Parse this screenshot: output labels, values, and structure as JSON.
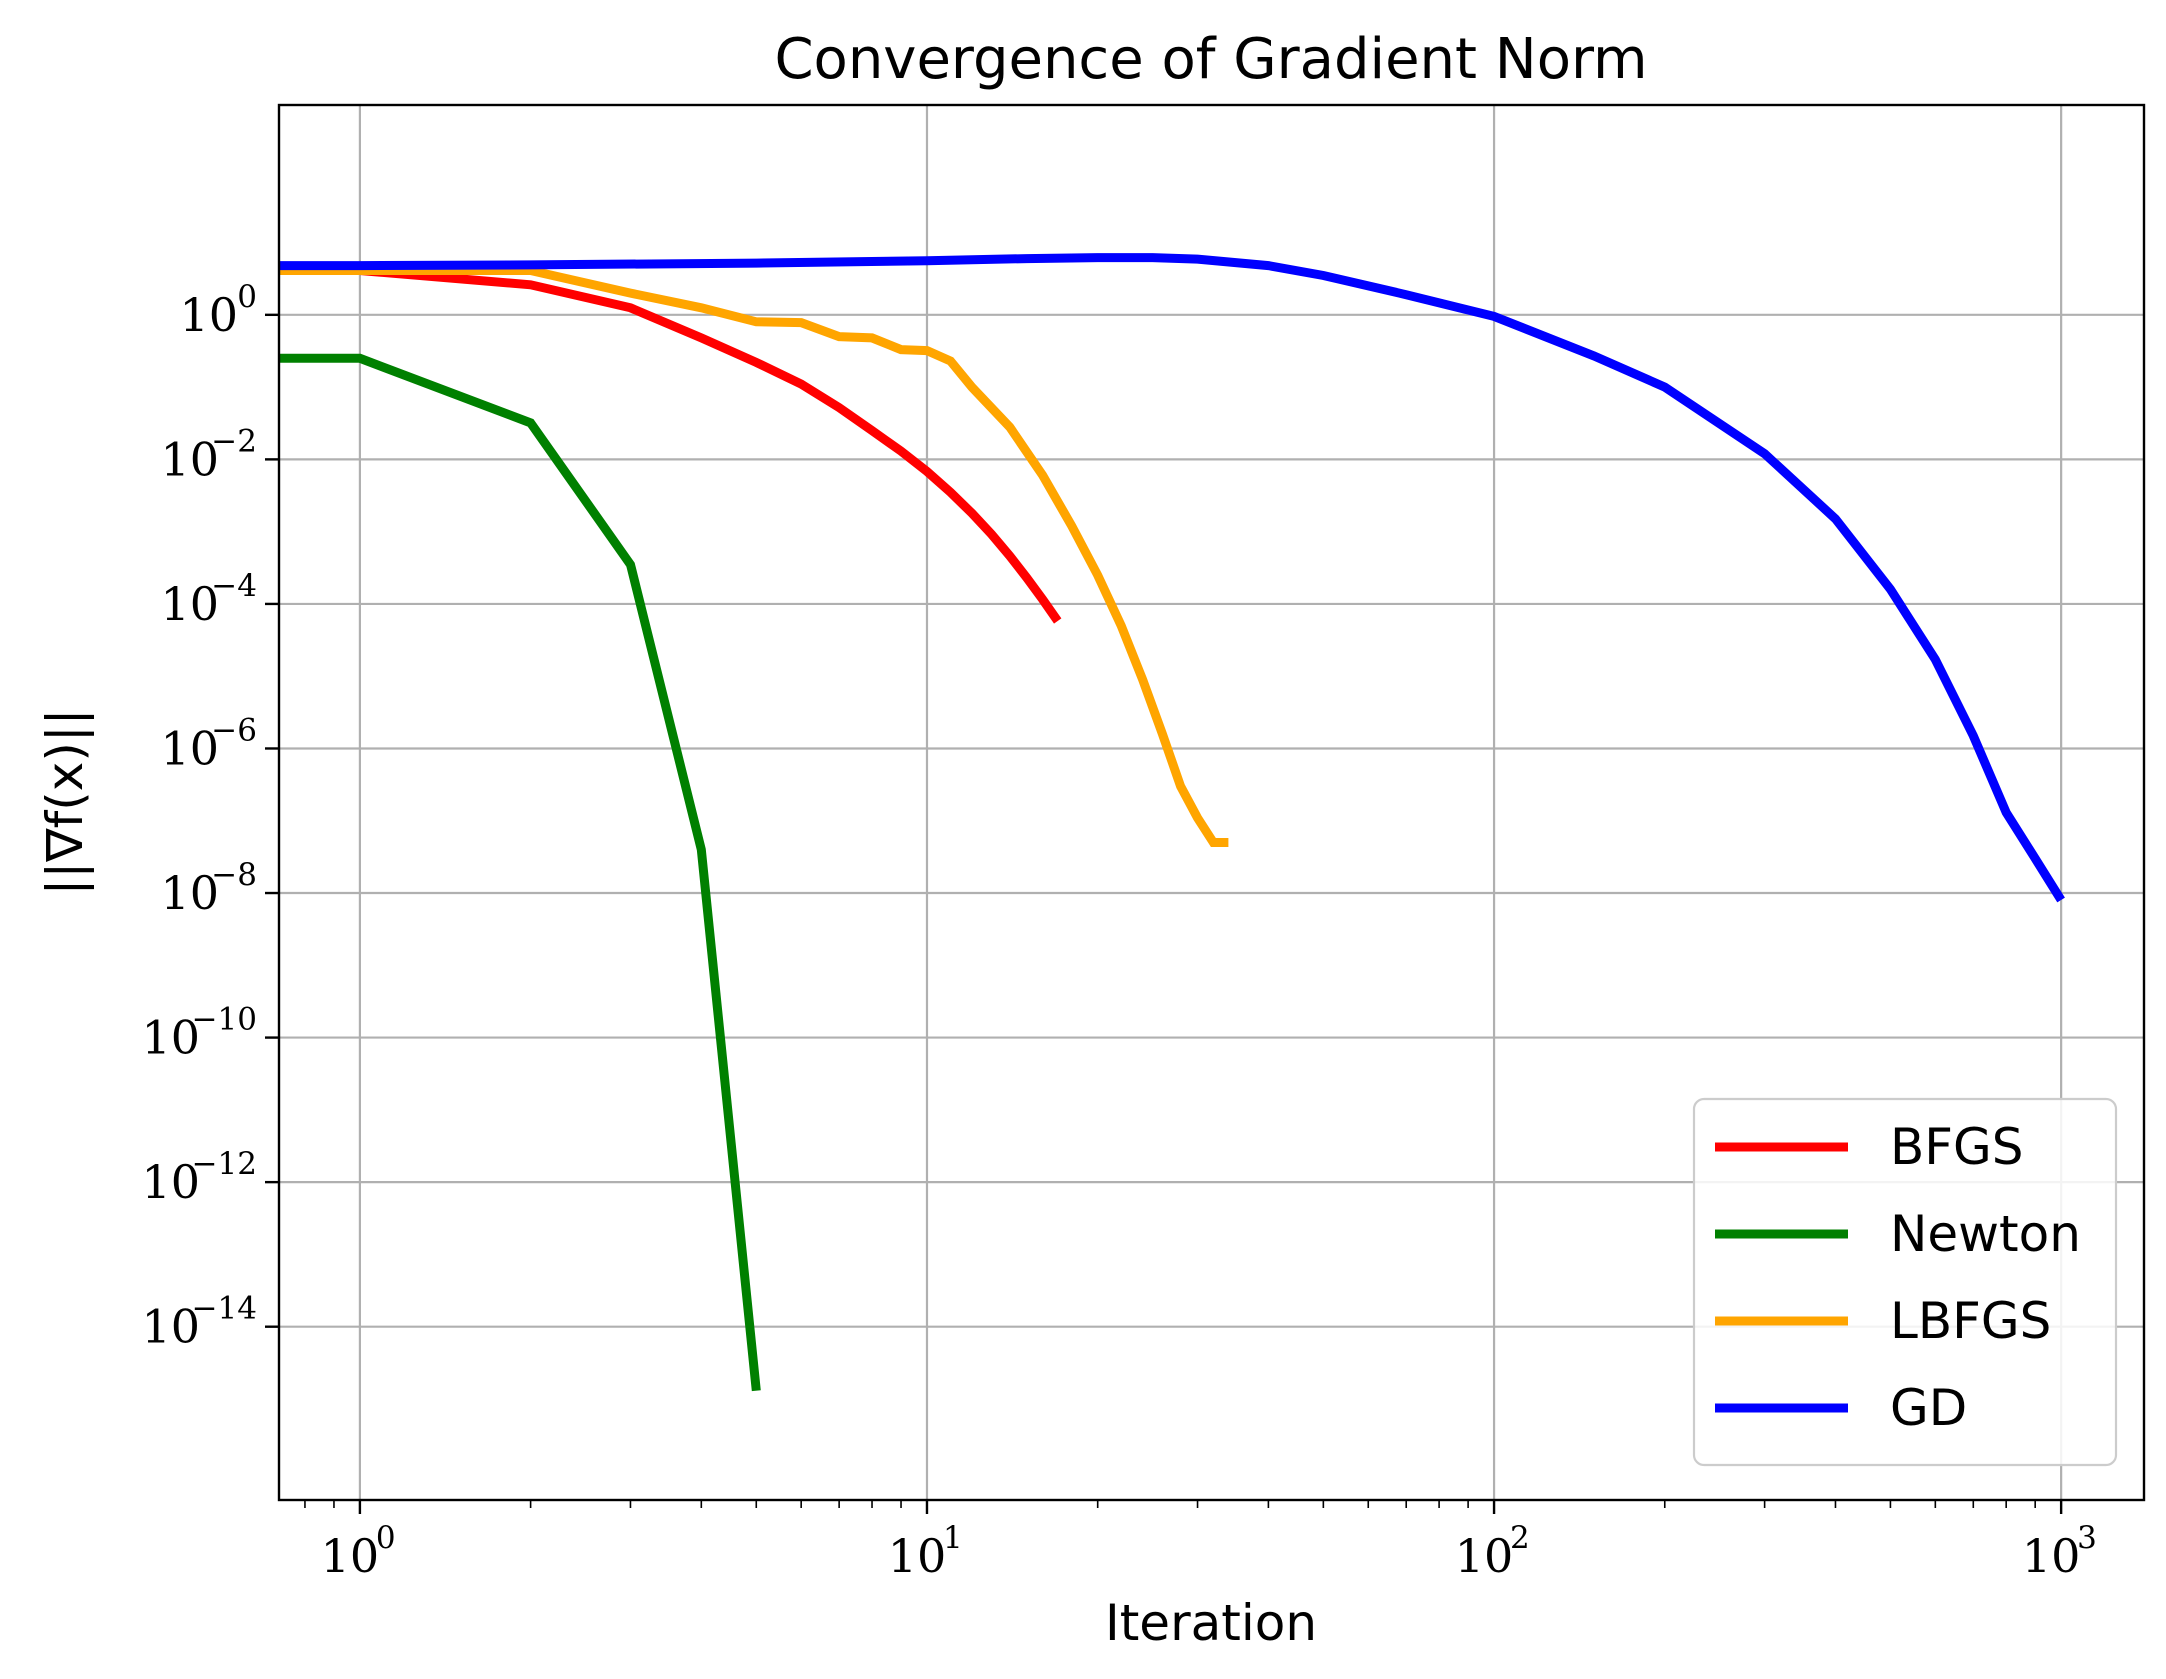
{
  "chart_data": {
    "type": "line",
    "title": "Convergence of Gradient Norm",
    "xlabel": "Iteration",
    "ylabel": "||∇f(x)||",
    "xscale": "log",
    "yscale": "log",
    "xlim": [
      0.72,
      1400
    ],
    "ylim": [
      4e-17,
      800
    ],
    "grid": true,
    "legend_position": "lower-right",
    "x_ticks": [
      {
        "value": 1,
        "base": "10",
        "exp": "0"
      },
      {
        "value": 10,
        "base": "10",
        "exp": "1"
      },
      {
        "value": 100,
        "base": "10",
        "exp": "2"
      },
      {
        "value": 1000,
        "base": "10",
        "exp": "3"
      }
    ],
    "y_ticks": [
      {
        "value": 1,
        "base": "10",
        "exp": "0"
      },
      {
        "value": 0.01,
        "base": "10",
        "exp": "−2"
      },
      {
        "value": 0.0001,
        "base": "10",
        "exp": "−4"
      },
      {
        "value": 1e-06,
        "base": "10",
        "exp": "−6"
      },
      {
        "value": 1e-08,
        "base": "10",
        "exp": "−8"
      },
      {
        "value": 1e-10,
        "base": "10",
        "exp": "−10"
      },
      {
        "value": 1e-12,
        "base": "10",
        "exp": "−12"
      },
      {
        "value": 1e-14,
        "base": "10",
        "exp": "−14"
      }
    ],
    "series": [
      {
        "name": "BFGS",
        "color": "#ff0000",
        "x": [
          0,
          1,
          2,
          3,
          4,
          5,
          6,
          7,
          8,
          9,
          10,
          11,
          12,
          13,
          14,
          15,
          16,
          17
        ],
        "y": [
          4.1,
          4.1,
          2.6,
          1.25,
          0.48,
          0.22,
          0.11,
          0.052,
          0.025,
          0.013,
          0.0068,
          0.0035,
          0.0018,
          0.00092,
          0.00046,
          0.00023,
          0.000115,
          5.8e-05
        ]
      },
      {
        "name": "Newton",
        "color": "#008000",
        "x": [
          0,
          1,
          2,
          3,
          4,
          5
        ],
        "y": [
          0.25,
          0.25,
          0.032,
          0.00035,
          4e-08,
          1.3e-15
        ]
      },
      {
        "name": "LBFGS",
        "color": "#ffa500",
        "x": [
          0,
          1,
          2,
          3,
          4,
          5,
          6,
          7,
          8,
          9,
          10,
          11,
          12,
          14,
          16,
          18,
          20,
          22,
          24,
          26,
          28,
          30,
          32,
          33,
          34
        ],
        "y": [
          4.1,
          4.1,
          4.1,
          2.0,
          1.25,
          0.8,
          0.78,
          0.5,
          0.48,
          0.33,
          0.32,
          0.23,
          0.1,
          0.028,
          0.006,
          0.0012,
          0.00025,
          5e-05,
          9e-06,
          1.6e-06,
          3e-07,
          1.1e-07,
          5e-08,
          5e-08,
          5e-08
        ]
      },
      {
        "name": "GD",
        "color": "#0000ff",
        "x": [
          0,
          1,
          2,
          5,
          10,
          15,
          20,
          25,
          30,
          40,
          50,
          70,
          100,
          150,
          200,
          300,
          400,
          500,
          600,
          700,
          800,
          900,
          1000
        ],
        "y": [
          4.8,
          4.8,
          4.9,
          5.2,
          5.6,
          6.0,
          6.2,
          6.2,
          5.9,
          4.8,
          3.5,
          1.9,
          0.95,
          0.27,
          0.1,
          0.012,
          0.0015,
          0.00016,
          1.7e-05,
          1.5e-06,
          1.3e-07,
          3e-08,
          8e-09
        ]
      }
    ]
  }
}
